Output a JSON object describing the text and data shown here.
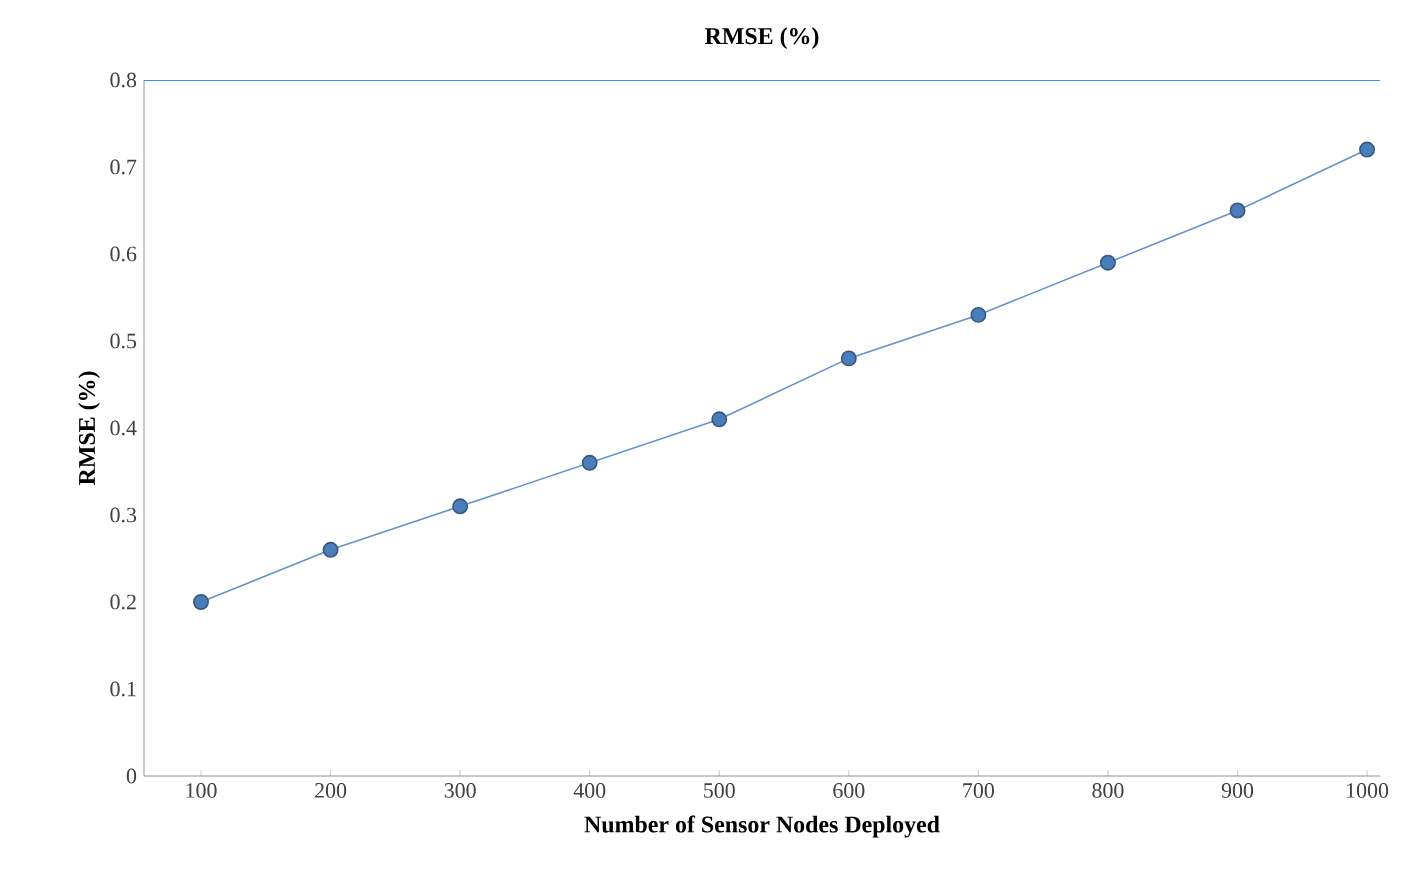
{
  "chart_data": {
    "type": "line",
    "title": "RMSE (%)",
    "xlabel": "Number of Sensor Nodes Deployed",
    "ylabel": "RMSE (%)",
    "categories": [
      "100",
      "200",
      "300",
      "400",
      "500",
      "600",
      "700",
      "800",
      "900",
      "1000"
    ],
    "series": [
      {
        "color": "#4a7ebb",
        "values": [
          0.2,
          0.26,
          0.31,
          0.36,
          0.41,
          0.48,
          0.53,
          0.59,
          0.65,
          0.72
        ]
      }
    ],
    "ylim": [
      0,
      0.8
    ],
    "yticks": [
      0,
      0.1,
      0.2,
      0.3,
      0.4,
      0.5,
      0.6,
      0.7,
      0.8
    ],
    "marker": "circle",
    "line_style": "solid"
  }
}
